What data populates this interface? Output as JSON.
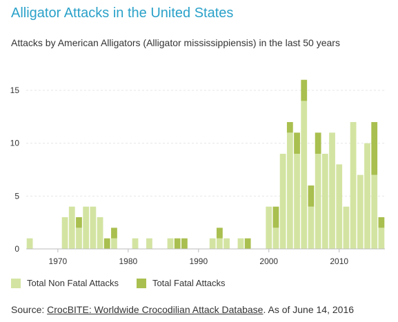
{
  "title": "Alligator Attacks in the United States",
  "subtitle": "Attacks by American Alligators (Alligator mississippiensis) in the last 50 years",
  "colors": {
    "title": "#2aa1c9",
    "non_fatal": "#d3e4a2",
    "fatal": "#a9bf4f",
    "grid": "#e6e6e6",
    "axis": "#bbbbbb"
  },
  "legend": {
    "non_fatal_label": "Total Non Fatal Attacks",
    "fatal_label": "Total Fatal Attacks"
  },
  "source": {
    "prefix": "Source: ",
    "link_text": "CrocBITE: Worldwide Crocodilian Attack Database",
    "suffix": ". As of June 14, 2016"
  },
  "chart_data": {
    "type": "bar",
    "stacked": true,
    "title": "Alligator Attacks in the United States",
    "subtitle": "Attacks by American Alligators (Alligator mississippiensis) in the last 50 years",
    "xlabel": "",
    "ylabel": "",
    "ylim": [
      0,
      17
    ],
    "yticks": [
      0,
      5,
      10,
      15
    ],
    "xticks": [
      1970,
      1980,
      1990,
      2000,
      2010
    ],
    "grid": "horizontal",
    "legend_position": "bottom-left",
    "categories": [
      1966,
      1967,
      1968,
      1969,
      1970,
      1971,
      1972,
      1973,
      1974,
      1975,
      1976,
      1977,
      1978,
      1979,
      1980,
      1981,
      1982,
      1983,
      1984,
      1985,
      1986,
      1987,
      1988,
      1989,
      1990,
      1991,
      1992,
      1993,
      1994,
      1995,
      1996,
      1997,
      1998,
      1999,
      2000,
      2001,
      2002,
      2003,
      2004,
      2005,
      2006,
      2007,
      2008,
      2009,
      2010,
      2011,
      2012,
      2013,
      2014,
      2015,
      2016
    ],
    "series": [
      {
        "name": "Total Non Fatal Attacks",
        "values": [
          1,
          0,
          0,
          0,
          0,
          3,
          4,
          2,
          4,
          4,
          3,
          0,
          1,
          0,
          0,
          1,
          0,
          1,
          0,
          0,
          1,
          0,
          0,
          0,
          0,
          0,
          1,
          1,
          1,
          0,
          1,
          0,
          0,
          0,
          4,
          2,
          9,
          11,
          9,
          14,
          4,
          9,
          9,
          11,
          8,
          4,
          12,
          7,
          10,
          7,
          2
        ]
      },
      {
        "name": "Total Fatal Attacks",
        "values": [
          0,
          0,
          0,
          0,
          0,
          0,
          0,
          1,
          0,
          0,
          0,
          1,
          1,
          0,
          0,
          0,
          0,
          0,
          0,
          0,
          0,
          1,
          1,
          0,
          0,
          0,
          0,
          1,
          0,
          0,
          0,
          1,
          0,
          0,
          0,
          2,
          0,
          1,
          2,
          2,
          2,
          2,
          0,
          0,
          0,
          0,
          0,
          0,
          0,
          5,
          1
        ]
      }
    ]
  }
}
